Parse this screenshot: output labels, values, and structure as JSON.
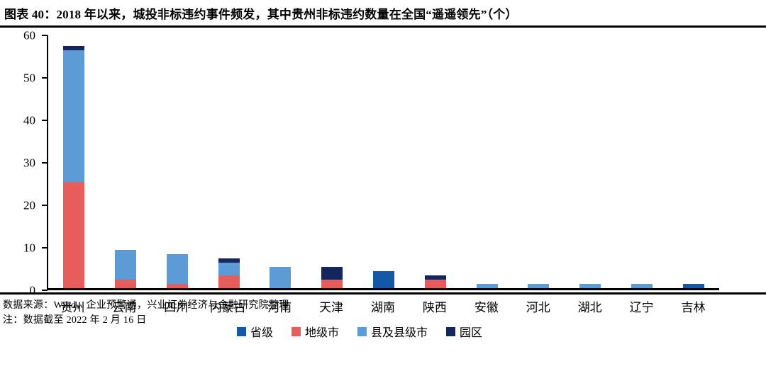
{
  "title": "图表 40：2018 年以来，城投非标违约事件频发，其中贵州非标违约数量在全国“遥遥领先”（个）",
  "footer": {
    "source": "数据来源：Wind，企业预警通，兴业证券经济与金融研究院整理",
    "note": "注：数据截至 2022 年 2 月 16 日"
  },
  "colors": {
    "provincial": "#1458A7",
    "prefecture": "#E95C5C",
    "county": "#5C9BD6",
    "park": "#14265E",
    "axis": "#000000",
    "background": "#FFFFFF"
  },
  "chart_data": {
    "type": "bar",
    "stacked": true,
    "grid": false,
    "legend_position": "bottom",
    "categories": [
      "贵州",
      "云南",
      "四川",
      "内蒙古",
      "河南",
      "天津",
      "湖南",
      "陕西",
      "安徽",
      "河北",
      "湖北",
      "辽宁",
      "吉林"
    ],
    "series": [
      {
        "name": "省级",
        "color": "#1458A7",
        "values": [
          0,
          0,
          0,
          0,
          0,
          0,
          4,
          0,
          0,
          0,
          0,
          0,
          1
        ]
      },
      {
        "name": "地级市",
        "color": "#E95C5C",
        "values": [
          25,
          2,
          1,
          3,
          0,
          2,
          0,
          2,
          0,
          0,
          0,
          0,
          0
        ]
      },
      {
        "name": "县及县级市",
        "color": "#5C9BD6",
        "values": [
          31,
          7,
          7,
          3,
          5,
          0,
          0,
          0,
          1,
          1,
          1,
          1,
          0
        ]
      },
      {
        "name": "园区",
        "color": "#14265E",
        "values": [
          1,
          0,
          0,
          1,
          0,
          3,
          0,
          1,
          0,
          0,
          0,
          0,
          0
        ]
      }
    ],
    "totals": [
      57,
      9,
      8,
      7,
      5,
      5,
      4,
      3,
      1,
      1,
      1,
      1,
      1
    ],
    "ylim": [
      0,
      60
    ],
    "ytick_step": 10,
    "yticks": [
      0,
      10,
      20,
      30,
      40,
      50,
      60
    ],
    "xlabel": "",
    "ylabel": ""
  }
}
